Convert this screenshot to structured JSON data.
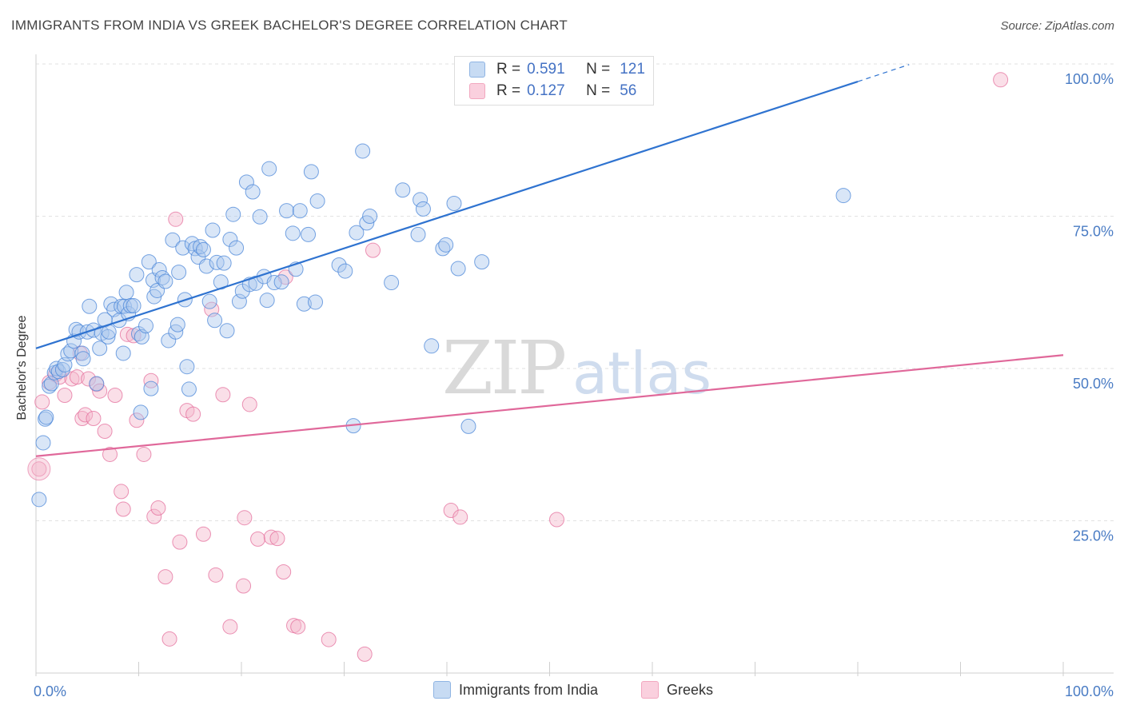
{
  "title": "IMMIGRANTS FROM INDIA VS GREEK BACHELOR'S DEGREE CORRELATION CHART",
  "source": "Source: ZipAtlas.com",
  "watermark": {
    "zip": "ZIP",
    "atlas": "atlas"
  },
  "legend": {
    "rows": [
      {
        "r_label": "R =",
        "r_value": "0.591",
        "n_label": "N =",
        "n_value": "121",
        "color": "#8fb4e3"
      },
      {
        "r_label": "R =",
        "r_value": "0.127",
        "n_label": "N =",
        "n_value": "56",
        "color": "#f2a7bf"
      }
    ]
  },
  "bottom_legend": [
    {
      "label": "Immigrants from India",
      "color": "#8fb4e3"
    },
    {
      "label": "Greeks",
      "color": "#f2a7bf"
    }
  ],
  "chart_data": {
    "type": "scatter",
    "title": "IMMIGRANTS FROM INDIA VS GREEK BACHELOR'S DEGREE CORRELATION CHART",
    "xlabel": "",
    "ylabel": "Bachelor's Degree",
    "xlim": [
      0,
      100
    ],
    "ylim": [
      0,
      100
    ],
    "x_tick_labels": [
      "0.0%",
      "100.0%"
    ],
    "y_tick_labels": [
      "25.0%",
      "50.0%",
      "75.0%",
      "100.0%"
    ],
    "y_ticks": [
      25,
      50,
      75,
      100
    ],
    "series": [
      {
        "name": "Immigrants from India",
        "color": "#4a86d8",
        "fill": "#aac8ee",
        "trend": {
          "x0": 0,
          "y0": 53.3,
          "x1": 80,
          "y1": 97.1,
          "dash_to_x": 85,
          "dash_to_y": 99.9
        },
        "points": [
          [
            0.3,
            28.5
          ],
          [
            0.7,
            37.8
          ],
          [
            0.9,
            41.7
          ],
          [
            1.0,
            42.0
          ],
          [
            1.3,
            47.1
          ],
          [
            1.5,
            47.5
          ],
          [
            1.8,
            49.3
          ],
          [
            2.0,
            50.0
          ],
          [
            2.2,
            49.5
          ],
          [
            2.6,
            49.8
          ],
          [
            2.8,
            50.6
          ],
          [
            3.1,
            52.4
          ],
          [
            3.4,
            52.9
          ],
          [
            3.7,
            54.5
          ],
          [
            3.9,
            56.4
          ],
          [
            4.2,
            56.0
          ],
          [
            4.5,
            52.5
          ],
          [
            4.6,
            51.6
          ],
          [
            5.0,
            56.0
          ],
          [
            5.2,
            60.2
          ],
          [
            5.6,
            56.3
          ],
          [
            5.9,
            47.5
          ],
          [
            6.2,
            53.3
          ],
          [
            6.4,
            55.8
          ],
          [
            6.7,
            58.0
          ],
          [
            7.0,
            55.2
          ],
          [
            7.1,
            56.0
          ],
          [
            7.3,
            60.6
          ],
          [
            7.6,
            59.7
          ],
          [
            8.1,
            57.9
          ],
          [
            8.3,
            60.2
          ],
          [
            8.5,
            52.5
          ],
          [
            8.6,
            60.2
          ],
          [
            8.8,
            62.5
          ],
          [
            9.0,
            59.0
          ],
          [
            9.2,
            60.3
          ],
          [
            9.5,
            60.3
          ],
          [
            9.8,
            65.4
          ],
          [
            10.0,
            55.7
          ],
          [
            10.2,
            42.8
          ],
          [
            10.3,
            55.2
          ],
          [
            10.7,
            57.0
          ],
          [
            11.0,
            67.5
          ],
          [
            11.2,
            46.7
          ],
          [
            11.4,
            64.5
          ],
          [
            11.5,
            61.8
          ],
          [
            11.8,
            62.8
          ],
          [
            12.0,
            66.2
          ],
          [
            12.3,
            64.9
          ],
          [
            12.6,
            64.3
          ],
          [
            12.9,
            54.6
          ],
          [
            13.3,
            71.1
          ],
          [
            13.6,
            56.0
          ],
          [
            13.8,
            57.2
          ],
          [
            13.9,
            65.8
          ],
          [
            14.3,
            69.8
          ],
          [
            14.5,
            61.3
          ],
          [
            14.7,
            50.3
          ],
          [
            14.9,
            46.6
          ],
          [
            15.2,
            70.5
          ],
          [
            15.5,
            69.7
          ],
          [
            15.8,
            68.3
          ],
          [
            16.0,
            70.0
          ],
          [
            16.3,
            69.5
          ],
          [
            16.6,
            66.8
          ],
          [
            16.9,
            61.0
          ],
          [
            17.2,
            72.7
          ],
          [
            17.4,
            57.9
          ],
          [
            17.6,
            67.4
          ],
          [
            18.0,
            64.2
          ],
          [
            18.3,
            67.3
          ],
          [
            18.6,
            56.2
          ],
          [
            18.9,
            71.2
          ],
          [
            19.2,
            75.3
          ],
          [
            19.5,
            69.8
          ],
          [
            19.8,
            61.0
          ],
          [
            20.1,
            62.7
          ],
          [
            20.5,
            80.6
          ],
          [
            20.8,
            63.8
          ],
          [
            21.1,
            79.0
          ],
          [
            21.4,
            64.0
          ],
          [
            21.8,
            74.9
          ],
          [
            22.2,
            65.1
          ],
          [
            22.5,
            61.2
          ],
          [
            22.7,
            82.8
          ],
          [
            23.2,
            64.1
          ],
          [
            23.9,
            64.2
          ],
          [
            24.4,
            75.9
          ],
          [
            25.0,
            72.2
          ],
          [
            25.3,
            66.3
          ],
          [
            25.7,
            75.9
          ],
          [
            26.1,
            60.6
          ],
          [
            26.5,
            72.0
          ],
          [
            26.8,
            82.3
          ],
          [
            27.2,
            60.9
          ],
          [
            27.4,
            77.5
          ],
          [
            29.5,
            67.0
          ],
          [
            30.1,
            66.0
          ],
          [
            30.9,
            40.6
          ],
          [
            31.2,
            72.3
          ],
          [
            31.8,
            85.7
          ],
          [
            32.2,
            73.9
          ],
          [
            32.5,
            75.0
          ],
          [
            34.6,
            64.1
          ],
          [
            35.7,
            79.3
          ],
          [
            37.2,
            72.0
          ],
          [
            37.4,
            77.7
          ],
          [
            37.7,
            76.2
          ],
          [
            38.5,
            53.7
          ],
          [
            39.6,
            69.7
          ],
          [
            39.9,
            70.3
          ],
          [
            40.7,
            77.1
          ],
          [
            41.1,
            66.4
          ],
          [
            42.1,
            40.5
          ],
          [
            43.4,
            67.5
          ],
          [
            78.6,
            78.4
          ]
        ]
      },
      {
        "name": "Greeks",
        "color": "#e46f9c",
        "fill": "#f4b8cd",
        "trend": {
          "x0": 0,
          "y0": 35.6,
          "x1": 100,
          "y1": 52.2
        },
        "points": [
          [
            0.3,
            33.5
          ],
          [
            0.6,
            44.5
          ],
          [
            1.3,
            47.7
          ],
          [
            1.9,
            49.0
          ],
          [
            2.3,
            48.6
          ],
          [
            2.8,
            45.6
          ],
          [
            3.5,
            48.3
          ],
          [
            4.0,
            48.6
          ],
          [
            4.3,
            52.5
          ],
          [
            4.5,
            41.8
          ],
          [
            4.8,
            42.4
          ],
          [
            5.1,
            48.3
          ],
          [
            5.6,
            41.8
          ],
          [
            5.9,
            47.4
          ],
          [
            6.2,
            46.3
          ],
          [
            6.7,
            39.7
          ],
          [
            7.2,
            35.9
          ],
          [
            7.7,
            45.6
          ],
          [
            8.3,
            29.8
          ],
          [
            8.5,
            26.9
          ],
          [
            8.9,
            55.6
          ],
          [
            9.5,
            55.4
          ],
          [
            9.8,
            41.5
          ],
          [
            10.5,
            35.9
          ],
          [
            11.2,
            48.0
          ],
          [
            11.5,
            25.7
          ],
          [
            11.9,
            27.1
          ],
          [
            12.6,
            15.8
          ],
          [
            13.0,
            5.6
          ],
          [
            13.6,
            74.5
          ],
          [
            14.0,
            21.5
          ],
          [
            14.7,
            43.1
          ],
          [
            15.3,
            42.5
          ],
          [
            16.3,
            22.8
          ],
          [
            17.1,
            59.7
          ],
          [
            17.5,
            16.1
          ],
          [
            18.2,
            45.7
          ],
          [
            18.9,
            7.6
          ],
          [
            20.2,
            14.3
          ],
          [
            20.3,
            25.5
          ],
          [
            20.8,
            44.1
          ],
          [
            21.6,
            22.0
          ],
          [
            22.9,
            22.3
          ],
          [
            23.5,
            22.1
          ],
          [
            24.1,
            16.6
          ],
          [
            24.3,
            65.0
          ],
          [
            25.1,
            7.8
          ],
          [
            25.5,
            7.6
          ],
          [
            28.5,
            5.5
          ],
          [
            32.0,
            3.1
          ],
          [
            32.8,
            69.4
          ],
          [
            40.4,
            26.7
          ],
          [
            41.3,
            25.6
          ],
          [
            50.7,
            25.2
          ],
          [
            93.9,
            97.4
          ]
        ]
      }
    ]
  }
}
